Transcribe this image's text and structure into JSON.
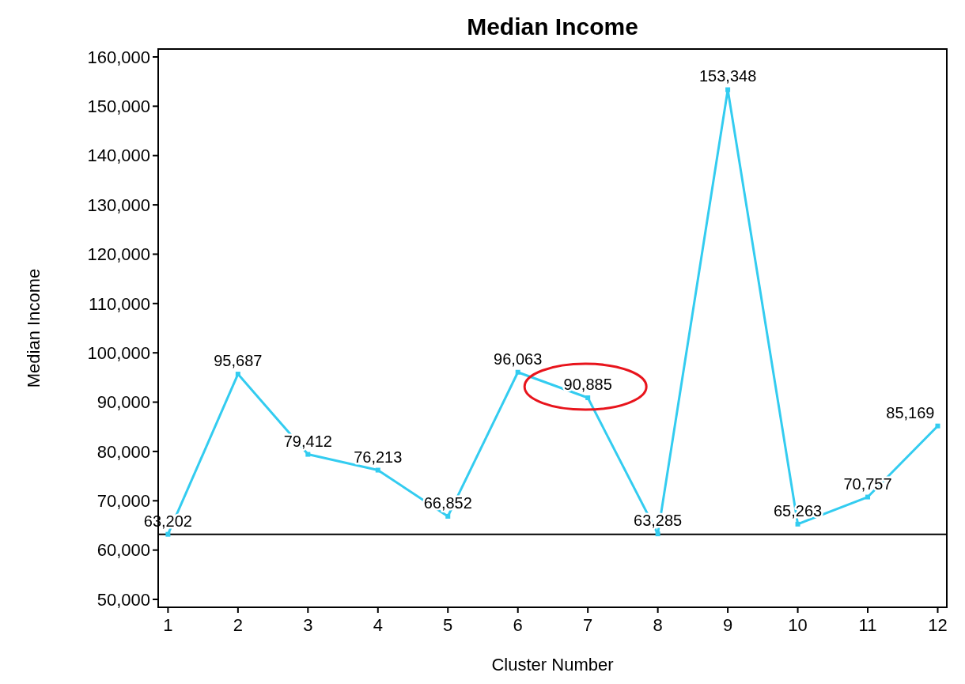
{
  "chart_data": {
    "type": "line",
    "title": "Median Income",
    "xlabel": "Cluster Number",
    "ylabel": "Median Income",
    "x": [
      1,
      2,
      3,
      4,
      5,
      6,
      7,
      8,
      9,
      10,
      11,
      12
    ],
    "series": [
      {
        "color": "#33ccf0",
        "values": [
          63202,
          95687,
          79412,
          76213,
          66852,
          96063,
          90885,
          63285,
          153348,
          65263,
          70757,
          85169
        ],
        "value_labels": [
          "63,202",
          "95,687",
          "79,412",
          "76,213",
          "66,852",
          "96,063",
          "90,885",
          "63,285",
          "153,348",
          "65,263",
          "70,757",
          "85,169"
        ]
      }
    ],
    "xlim": [
      0.86,
      12.13
    ],
    "xticks": [
      1,
      2,
      3,
      4,
      5,
      6,
      7,
      8,
      9,
      10,
      11,
      12
    ],
    "ylim": [
      48400,
      161600
    ],
    "yticks": [
      {
        "value": 50000,
        "label": "50,000"
      },
      {
        "value": 60000,
        "label": "60,000"
      },
      {
        "value": 70000,
        "label": "70,000"
      },
      {
        "value": 80000,
        "label": "80,000"
      },
      {
        "value": 90000,
        "label": "90,000"
      },
      {
        "value": 100000,
        "label": "100,000"
      },
      {
        "value": 110000,
        "label": "110,000"
      },
      {
        "value": 120000,
        "label": "120,000"
      },
      {
        "value": 130000,
        "label": "130,000"
      },
      {
        "value": 140000,
        "label": "140,000"
      },
      {
        "value": 150000,
        "label": "150,000"
      },
      {
        "value": 160000,
        "label": "160,000"
      }
    ],
    "ref_lines": [
      {
        "axis": "y",
        "value": 63202,
        "color": "#000000"
      }
    ],
    "marker": "square",
    "grid": false
  }
}
